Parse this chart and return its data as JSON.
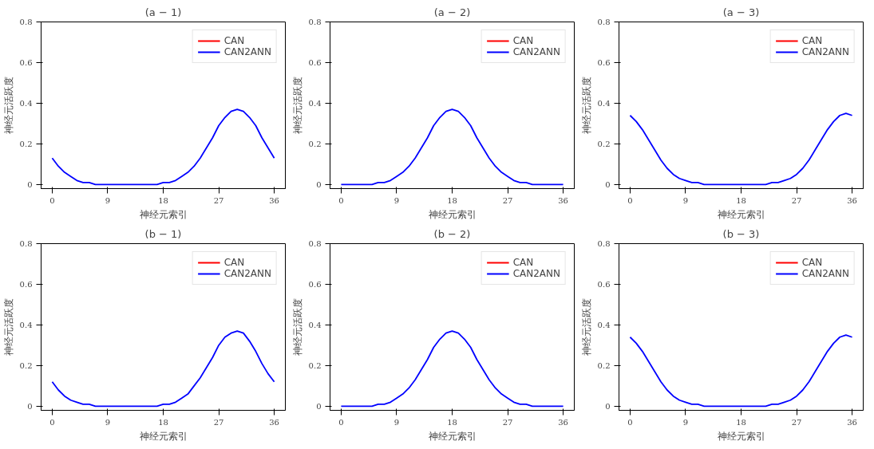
{
  "chart_data": [
    {
      "type": "line",
      "title": "(a − 1)",
      "xlabel": "神经元索引",
      "ylabel": "神经元活跃度",
      "x": [
        0,
        1,
        2,
        3,
        4,
        5,
        6,
        7,
        8,
        9,
        10,
        11,
        12,
        13,
        14,
        15,
        16,
        17,
        18,
        19,
        20,
        21,
        22,
        23,
        24,
        25,
        26,
        27,
        28,
        29,
        30,
        31,
        32,
        33,
        34,
        35,
        36
      ],
      "xlim": [
        -1.8,
        37.8
      ],
      "xticks": [
        0,
        9,
        18,
        27,
        36
      ],
      "ylim": [
        -0.02,
        0.8
      ],
      "yticks": [
        0,
        0.2,
        0.4,
        0.6,
        0.8
      ],
      "legend": "top right",
      "grid": false,
      "line_style": "solid",
      "series": [
        {
          "name": "CAN",
          "color": "#ff0000",
          "values": [
            null,
            null,
            null,
            null,
            null,
            null,
            null,
            null,
            null,
            null,
            null,
            null,
            null,
            null,
            null,
            null,
            null,
            null,
            null,
            null,
            null,
            null,
            null,
            null,
            null,
            null,
            null,
            null,
            null,
            null,
            null,
            null,
            null,
            null,
            null,
            null,
            null
          ]
        },
        {
          "name": "CAN2ANN",
          "color": "#0000ff",
          "values": [
            0.13,
            0.09,
            0.06,
            0.04,
            0.02,
            0.01,
            0.01,
            0,
            0,
            0,
            0,
            0,
            0,
            0,
            0,
            0,
            0,
            0,
            0.01,
            0.01,
            0.02,
            0.04,
            0.06,
            0.09,
            0.13,
            0.18,
            0.23,
            0.29,
            0.33,
            0.36,
            0.37,
            0.36,
            0.33,
            0.29,
            0.23,
            0.18,
            0.13
          ]
        }
      ]
    },
    {
      "type": "line",
      "title": "(a − 2)",
      "xlabel": "神经元索引",
      "ylabel": "神经元活跃度",
      "x": [
        0,
        1,
        2,
        3,
        4,
        5,
        6,
        7,
        8,
        9,
        10,
        11,
        12,
        13,
        14,
        15,
        16,
        17,
        18,
        19,
        20,
        21,
        22,
        23,
        24,
        25,
        26,
        27,
        28,
        29,
        30,
        31,
        32,
        33,
        34,
        35,
        36
      ],
      "xlim": [
        -1.8,
        37.8
      ],
      "xticks": [
        0,
        9,
        18,
        27,
        36
      ],
      "ylim": [
        -0.02,
        0.8
      ],
      "yticks": [
        0,
        0.2,
        0.4,
        0.6,
        0.8
      ],
      "legend": "top right",
      "grid": false,
      "line_style": "solid",
      "series": [
        {
          "name": "CAN",
          "color": "#ff0000",
          "values": [
            null,
            null,
            null,
            null,
            null,
            null,
            null,
            null,
            null,
            null,
            null,
            null,
            null,
            null,
            null,
            null,
            null,
            null,
            null,
            null,
            null,
            null,
            null,
            null,
            null,
            null,
            null,
            null,
            null,
            null,
            null,
            null,
            null,
            null,
            null,
            null,
            null
          ]
        },
        {
          "name": "CAN2ANN",
          "color": "#0000ff",
          "values": [
            0,
            0,
            0,
            0,
            0,
            0,
            0.01,
            0.01,
            0.02,
            0.04,
            0.06,
            0.09,
            0.13,
            0.18,
            0.23,
            0.29,
            0.33,
            0.36,
            0.37,
            0.36,
            0.33,
            0.29,
            0.23,
            0.18,
            0.13,
            0.09,
            0.06,
            0.04,
            0.02,
            0.01,
            0.01,
            0,
            0,
            0,
            0,
            0,
            0
          ]
        }
      ]
    },
    {
      "type": "line",
      "title": "(a − 3)",
      "xlabel": "神经元索引",
      "ylabel": "神经元活跃度",
      "x": [
        0,
        1,
        2,
        3,
        4,
        5,
        6,
        7,
        8,
        9,
        10,
        11,
        12,
        13,
        14,
        15,
        16,
        17,
        18,
        19,
        20,
        21,
        22,
        23,
        24,
        25,
        26,
        27,
        28,
        29,
        30,
        31,
        32,
        33,
        34,
        35,
        36
      ],
      "xlim": [
        -1.8,
        37.8
      ],
      "xticks": [
        0,
        9,
        18,
        27,
        36
      ],
      "ylim": [
        -0.02,
        0.8
      ],
      "yticks": [
        0,
        0.2,
        0.4,
        0.6,
        0.8
      ],
      "legend": "top right",
      "grid": false,
      "line_style": "solid",
      "series": [
        {
          "name": "CAN",
          "color": "#ff0000",
          "values": [
            null,
            null,
            null,
            null,
            null,
            null,
            null,
            null,
            null,
            null,
            null,
            null,
            null,
            null,
            null,
            null,
            null,
            null,
            null,
            null,
            null,
            null,
            null,
            null,
            null,
            null,
            null,
            null,
            null,
            null,
            null,
            null,
            null,
            null,
            null,
            null,
            null
          ]
        },
        {
          "name": "CAN2ANN",
          "color": "#0000ff",
          "values": [
            0.34,
            0.31,
            0.27,
            0.22,
            0.17,
            0.12,
            0.08,
            0.05,
            0.03,
            0.02,
            0.01,
            0.01,
            0,
            0,
            0,
            0,
            0,
            0,
            0,
            0,
            0,
            0,
            0,
            0.01,
            0.01,
            0.02,
            0.03,
            0.05,
            0.08,
            0.12,
            0.17,
            0.22,
            0.27,
            0.31,
            0.34,
            0.35,
            0.34
          ]
        }
      ]
    },
    {
      "type": "line",
      "title": "(b − 1)",
      "xlabel": "神经元索引",
      "ylabel": "神经元活跃度",
      "x": [
        0,
        1,
        2,
        3,
        4,
        5,
        6,
        7,
        8,
        9,
        10,
        11,
        12,
        13,
        14,
        15,
        16,
        17,
        18,
        19,
        20,
        21,
        22,
        23,
        24,
        25,
        26,
        27,
        28,
        29,
        30,
        31,
        32,
        33,
        34,
        35,
        36
      ],
      "xlim": [
        -1.8,
        37.8
      ],
      "xticks": [
        0,
        9,
        18,
        27,
        36
      ],
      "ylim": [
        -0.02,
        0.8
      ],
      "yticks": [
        0,
        0.2,
        0.4,
        0.6,
        0.8
      ],
      "legend": "top right",
      "grid": false,
      "line_style": "solid",
      "series": [
        {
          "name": "CAN",
          "color": "#ff0000",
          "values": [
            null,
            null,
            null,
            null,
            null,
            null,
            null,
            null,
            null,
            null,
            null,
            null,
            null,
            null,
            null,
            null,
            null,
            null,
            null,
            null,
            null,
            null,
            null,
            null,
            null,
            null,
            null,
            null,
            null,
            null,
            null,
            null,
            null,
            null,
            null,
            null,
            null
          ]
        },
        {
          "name": "CAN2ANN",
          "color": "#0000ff",
          "values": [
            0.12,
            0.08,
            0.05,
            0.03,
            0.02,
            0.01,
            0.01,
            0,
            0,
            0,
            0,
            0,
            0,
            0,
            0,
            0,
            0,
            0,
            0.01,
            0.01,
            0.02,
            0.04,
            0.06,
            0.1,
            0.14,
            0.19,
            0.24,
            0.3,
            0.34,
            0.36,
            0.37,
            0.36,
            0.32,
            0.27,
            0.21,
            0.16,
            0.12
          ]
        }
      ]
    },
    {
      "type": "line",
      "title": "(b − 2)",
      "xlabel": "神经元索引",
      "ylabel": "神经元活跃度",
      "x": [
        0,
        1,
        2,
        3,
        4,
        5,
        6,
        7,
        8,
        9,
        10,
        11,
        12,
        13,
        14,
        15,
        16,
        17,
        18,
        19,
        20,
        21,
        22,
        23,
        24,
        25,
        26,
        27,
        28,
        29,
        30,
        31,
        32,
        33,
        34,
        35,
        36
      ],
      "xlim": [
        -1.8,
        37.8
      ],
      "xticks": [
        0,
        9,
        18,
        27,
        36
      ],
      "ylim": [
        -0.02,
        0.8
      ],
      "yticks": [
        0,
        0.2,
        0.4,
        0.6,
        0.8
      ],
      "legend": "top right",
      "grid": false,
      "line_style": "solid",
      "series": [
        {
          "name": "CAN",
          "color": "#ff0000",
          "values": [
            null,
            null,
            null,
            null,
            null,
            null,
            null,
            null,
            null,
            null,
            null,
            null,
            null,
            null,
            null,
            null,
            null,
            null,
            null,
            null,
            null,
            null,
            null,
            null,
            null,
            null,
            null,
            null,
            null,
            null,
            null,
            null,
            null,
            null,
            null,
            null,
            null
          ]
        },
        {
          "name": "CAN2ANN",
          "color": "#0000ff",
          "values": [
            0,
            0,
            0,
            0,
            0,
            0,
            0.01,
            0.01,
            0.02,
            0.04,
            0.06,
            0.09,
            0.13,
            0.18,
            0.23,
            0.29,
            0.33,
            0.36,
            0.37,
            0.36,
            0.33,
            0.29,
            0.23,
            0.18,
            0.13,
            0.09,
            0.06,
            0.04,
            0.02,
            0.01,
            0.01,
            0,
            0,
            0,
            0,
            0,
            0
          ]
        }
      ]
    },
    {
      "type": "line",
      "title": "(b − 3)",
      "xlabel": "神经元索引",
      "ylabel": "神经元活跃度",
      "x": [
        0,
        1,
        2,
        3,
        4,
        5,
        6,
        7,
        8,
        9,
        10,
        11,
        12,
        13,
        14,
        15,
        16,
        17,
        18,
        19,
        20,
        21,
        22,
        23,
        24,
        25,
        26,
        27,
        28,
        29,
        30,
        31,
        32,
        33,
        34,
        35,
        36
      ],
      "xlim": [
        -1.8,
        37.8
      ],
      "xticks": [
        0,
        9,
        18,
        27,
        36
      ],
      "ylim": [
        -0.02,
        0.8
      ],
      "yticks": [
        0,
        0.2,
        0.4,
        0.6,
        0.8
      ],
      "legend": "top right",
      "grid": false,
      "line_style": "solid",
      "series": [
        {
          "name": "CAN",
          "color": "#ff0000",
          "values": [
            null,
            null,
            null,
            null,
            null,
            null,
            null,
            null,
            null,
            null,
            null,
            null,
            null,
            null,
            null,
            null,
            null,
            null,
            null,
            null,
            null,
            null,
            null,
            null,
            null,
            null,
            null,
            null,
            null,
            null,
            null,
            null,
            null,
            null,
            null,
            null,
            null
          ]
        },
        {
          "name": "CAN2ANN",
          "color": "#0000ff",
          "values": [
            0.34,
            0.31,
            0.27,
            0.22,
            0.17,
            0.12,
            0.08,
            0.05,
            0.03,
            0.02,
            0.01,
            0.01,
            0,
            0,
            0,
            0,
            0,
            0,
            0,
            0,
            0,
            0,
            0,
            0.01,
            0.01,
            0.02,
            0.03,
            0.05,
            0.08,
            0.12,
            0.17,
            0.22,
            0.27,
            0.31,
            0.34,
            0.35,
            0.34
          ]
        }
      ]
    }
  ]
}
